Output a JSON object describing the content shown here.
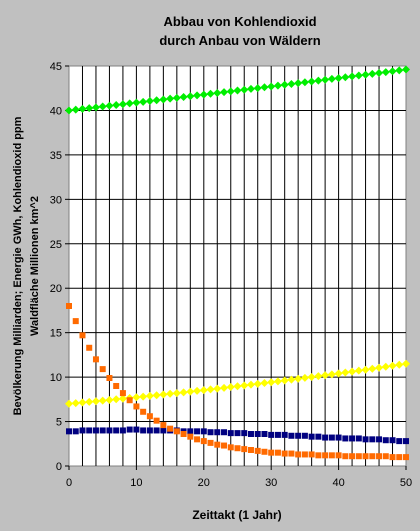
{
  "chart_data": {
    "type": "scatter",
    "title_lines": [
      "Abbau von Kohlendioxid",
      "durch Anbau von Wäldern"
    ],
    "xlabel": "Zeittakt (1 Jahr)",
    "ylabel_lines": [
      "Bevölkerung Milliarden; Energie GWh, Kohlendioxid ppm",
      "Waldfläche Millionen  km^2"
    ],
    "xlim": [
      0,
      50
    ],
    "ylim": [
      0,
      45
    ],
    "xticks": [
      "0",
      "10",
      "20",
      "30",
      "40",
      "50"
    ],
    "yticks": [
      "0",
      "5",
      "10",
      "15",
      "20",
      "25",
      "30",
      "35",
      "40",
      "45"
    ],
    "grid": {
      "vertical_every": 2,
      "horizontal_every": 5
    },
    "series": [
      {
        "color": "#00ee00",
        "marker": "diamond",
        "curve": {
          "type": "exp",
          "start": 40.0,
          "end": 44.6
        }
      },
      {
        "color": "#ffff00",
        "marker": "diamond",
        "curve": {
          "type": "exp",
          "start": 7.0,
          "end": 11.5
        }
      },
      {
        "color": "#000080",
        "marker": "square",
        "y": [
          3.9,
          3.9,
          4.0,
          4.0,
          4.0,
          4.0,
          4.0,
          4.0,
          4.0,
          4.1,
          4.1,
          4.0,
          4.0,
          4.0,
          4.0,
          4.0,
          4.0,
          3.9,
          3.9,
          3.9,
          3.9,
          3.8,
          3.8,
          3.8,
          3.7,
          3.7,
          3.7,
          3.6,
          3.6,
          3.6,
          3.5,
          3.5,
          3.5,
          3.4,
          3.4,
          3.4,
          3.3,
          3.3,
          3.2,
          3.2,
          3.2,
          3.1,
          3.1,
          3.1,
          3.0,
          3.0,
          3.0,
          2.9,
          2.9,
          2.8,
          2.8
        ]
      },
      {
        "color": "#ff6a00",
        "marker": "square",
        "y": [
          18.0,
          16.3,
          14.7,
          13.3,
          12.0,
          10.9,
          9.9,
          9.0,
          8.2,
          7.4,
          6.7,
          6.1,
          5.6,
          5.1,
          4.6,
          4.2,
          3.9,
          3.6,
          3.3,
          3.0,
          2.8,
          2.6,
          2.4,
          2.3,
          2.1,
          2.0,
          1.9,
          1.8,
          1.7,
          1.6,
          1.5,
          1.5,
          1.4,
          1.4,
          1.3,
          1.3,
          1.3,
          1.2,
          1.2,
          1.2,
          1.2,
          1.1,
          1.1,
          1.1,
          1.1,
          1.1,
          1.1,
          1.1,
          1.0,
          1.0,
          1.0
        ]
      }
    ]
  }
}
